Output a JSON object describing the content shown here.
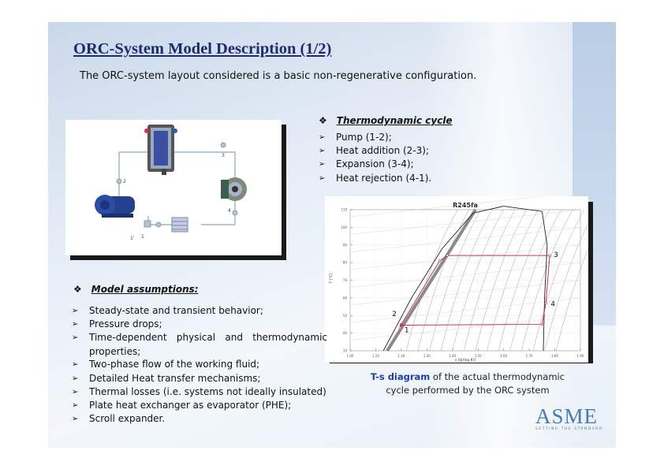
{
  "slide": {
    "title": "ORC-System Model Description (1/2)",
    "subtitle": "The ORC-system layout considered is a basic non-regenerative configuration."
  },
  "layout_diagram": {
    "state_labels": [
      "1",
      "1'",
      "2",
      "3",
      "4"
    ]
  },
  "thermo": {
    "heading": "Thermodynamic cycle",
    "items": [
      "Pump (1-2);",
      "Heat addition (2-3);",
      "Expansion (3-4);",
      "Heat rejection (4-1)."
    ]
  },
  "assumptions": {
    "heading": "Model assumptions:",
    "items": [
      "Steady-state and transient behavior;",
      "Pressure drops;",
      "Time-dependent physical and thermodynamic",
      "properties;",
      "Two-phase flow of the working fluid;",
      "Detailed Heat transfer mechanisms;",
      "Thermal losses (i.e. systems not ideally insulated)",
      "Plate heat exchanger as evaporator (PHE);",
      "Scroll expander."
    ]
  },
  "chart_data": {
    "type": "line",
    "title": "R245fa",
    "xlabel": "s [kJ/(kg K)]",
    "ylabel": "T [°C]",
    "xlim": [
      1.0,
      1.9
    ],
    "ylim": [
      30,
      110
    ],
    "xticks": [
      "1.00",
      "1.10",
      "1.20",
      "1.30",
      "1.40",
      "1.50",
      "1.60",
      "1.70",
      "1.80",
      "1.90"
    ],
    "yticks": [
      "30",
      "40",
      "50",
      "60",
      "70",
      "80",
      "90",
      "100",
      "110"
    ],
    "series": [
      {
        "name": "",
        "color": "#d0344b",
        "points": [
          [
            1.195,
            43
          ],
          [
            1.2,
            45
          ],
          [
            1.35,
            81
          ],
          [
            1.38,
            84
          ],
          [
            1.78,
            84
          ],
          [
            1.765,
            57
          ],
          [
            1.75,
            45
          ],
          [
            1.2,
            44.5
          ]
        ]
      }
    ],
    "state_points": [
      {
        "label": "1",
        "s": 1.2,
        "T": 44.5
      },
      {
        "label": "2",
        "s": 1.195,
        "T": 46
      },
      {
        "label": "3",
        "s": 1.78,
        "T": 84
      },
      {
        "label": "4",
        "s": 1.765,
        "T": 57
      }
    ],
    "saturation_dome": [
      [
        1.13,
        30
      ],
      [
        1.24,
        60
      ],
      [
        1.36,
        88
      ],
      [
        1.48,
        108
      ],
      [
        1.6,
        112
      ],
      [
        1.75,
        109
      ],
      [
        1.77,
        90
      ],
      [
        1.76,
        60
      ],
      [
        1.755,
        30
      ]
    ],
    "grid": true
  },
  "caption": {
    "bold": "T-s diagram",
    "rest_line1": " of the actual thermodynamic",
    "line2": "cycle performed by the ORC system"
  },
  "logo": {
    "word": "ASME",
    "tagline": "SETTING THE STANDARD"
  },
  "colors": {
    "title": "#1e2a6e",
    "caption_emphasis": "#1f3da8",
    "logo": "#4a79b4",
    "cycle_line": "#d0344b"
  }
}
